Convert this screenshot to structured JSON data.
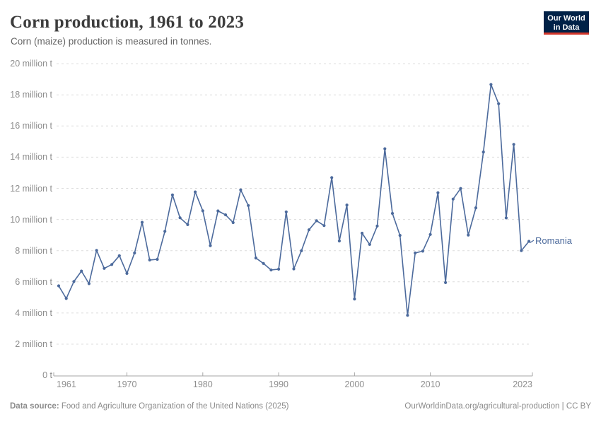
{
  "header": {
    "title": "Corn production, 1961 to 2023",
    "subtitle": "Corn (maize) production is measured in tonnes.",
    "logo": {
      "line1": "Our World",
      "line2": "in Data",
      "bg": "#002147",
      "accent": "#d2372b"
    }
  },
  "chart_data": {
    "type": "line",
    "title": "Corn production, 1961 to 2023",
    "subtitle": "Corn (maize) production is measured in tonnes.",
    "unit": "million tonnes",
    "xlabel": "",
    "ylabel": "",
    "xlim": [
      1961,
      2023
    ],
    "ylim": [
      0,
      20
    ],
    "grid": "horizontal-dashed",
    "legend_position": "end-of-line",
    "x": [
      1961,
      1962,
      1963,
      1964,
      1965,
      1966,
      1967,
      1968,
      1969,
      1970,
      1971,
      1972,
      1973,
      1974,
      1975,
      1976,
      1977,
      1978,
      1979,
      1980,
      1981,
      1982,
      1983,
      1984,
      1985,
      1986,
      1987,
      1988,
      1989,
      1990,
      1991,
      1992,
      1993,
      1994,
      1995,
      1996,
      1997,
      1998,
      1999,
      2000,
      2001,
      2002,
      2003,
      2004,
      2005,
      2006,
      2007,
      2008,
      2009,
      2010,
      2011,
      2012,
      2013,
      2014,
      2015,
      2016,
      2017,
      2018,
      2019,
      2020,
      2021,
      2022,
      2023
    ],
    "series": [
      {
        "name": "Romania",
        "color": "#4c6a9c",
        "values": [
          5.74,
          4.93,
          6.02,
          6.69,
          5.88,
          8.02,
          6.86,
          7.11,
          7.68,
          6.54,
          7.85,
          9.82,
          7.4,
          7.44,
          9.24,
          11.58,
          10.11,
          9.67,
          11.77,
          10.56,
          8.32,
          10.55,
          10.3,
          9.8,
          11.9,
          10.9,
          7.53,
          7.18,
          6.76,
          6.81,
          10.49,
          6.83,
          7.99,
          9.34,
          9.92,
          9.61,
          12.69,
          8.62,
          10.93,
          4.9,
          9.12,
          8.4,
          9.58,
          14.54,
          10.39,
          8.98,
          3.85,
          7.85,
          7.97,
          9.04,
          11.72,
          5.95,
          11.31,
          11.99,
          9.0,
          10.75,
          14.33,
          18.66,
          17.43,
          10.1,
          14.82,
          8.0,
          8.6
        ]
      }
    ],
    "y_tick_labels": [
      "0 t",
      "2 million t",
      "4 million t",
      "6 million t",
      "8 million t",
      "10 million t",
      "12 million t",
      "14 million t",
      "16 million t",
      "18 million t",
      "20 million t"
    ],
    "x_tick_labels": [
      "1961",
      "1970",
      "1980",
      "1990",
      "2000",
      "2010",
      "2023"
    ]
  },
  "colors": {
    "line": "#4c6a9c",
    "gridline": "#dcdcdc",
    "axis": "#a5a5a5",
    "tick_text": "#8e8e8e"
  },
  "footer": {
    "source_label": "Data source:",
    "source_text": " Food and Agriculture Organization of the United Nations (2025)",
    "url": "OurWorldinData.org/agricultural-production",
    "separator": " | ",
    "license": "CC BY"
  }
}
